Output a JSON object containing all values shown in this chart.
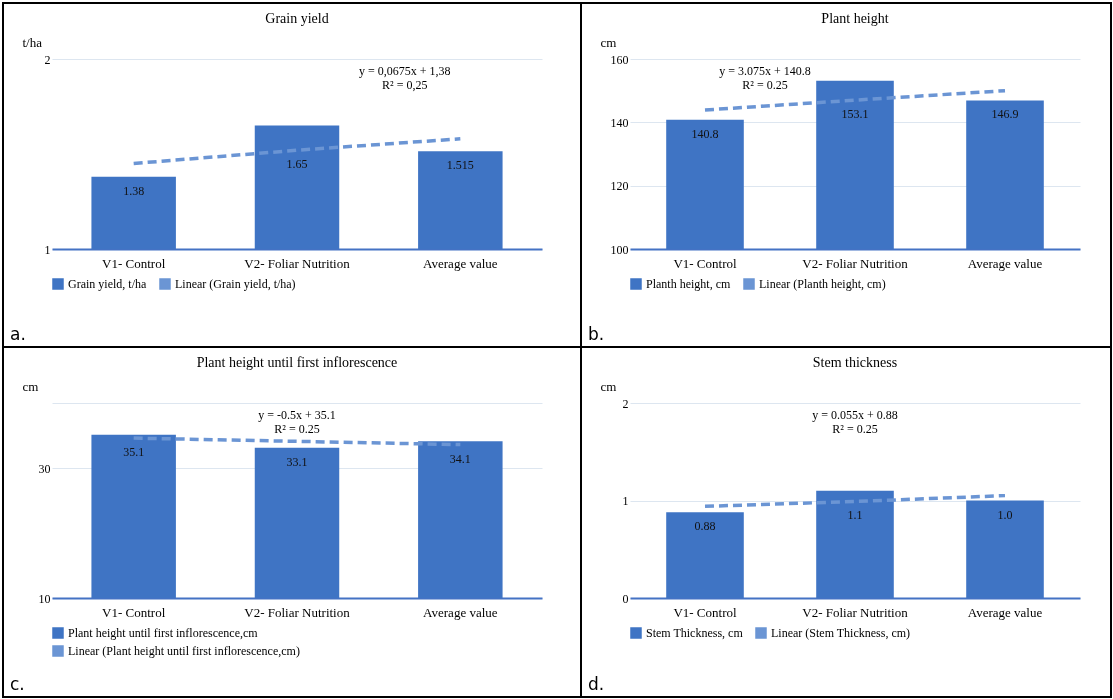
{
  "chart_data": [
    {
      "type": "bar",
      "title": "Grain yield",
      "ylabel": "t/ha",
      "categories": [
        "V1- Control",
        "V2- Foliar Nutrition",
        "Average value"
      ],
      "ylim": [
        1,
        2
      ],
      "yticks": [
        1,
        2
      ],
      "grid": "y",
      "legend": "bottom",
      "annotations": [
        "y = 0,0675x + 1,38",
        "R² = 0,25",
        "a."
      ],
      "series": [
        {
          "name": "Grain yield, t/ha",
          "color": "#3f74c4",
          "values": [
            1.38,
            1.65,
            1.515
          ],
          "value_labels": [
            "1.38",
            "1.65",
            "1.515"
          ]
        },
        {
          "name": "Linear (Grain yield, t/ha)",
          "type": "line",
          "line_style": "dashed",
          "color": "#6b95d4",
          "values": [
            1.45,
            1.52,
            1.58
          ]
        }
      ]
    },
    {
      "type": "bar",
      "title": "Plant height",
      "ylabel": "cm",
      "categories": [
        "V1- Control",
        "V2- Foliar Nutrition",
        "Average value"
      ],
      "ylim": [
        100,
        160
      ],
      "yticks": [
        100,
        120,
        140,
        160
      ],
      "grid": "y",
      "legend": "bottom",
      "annotations": [
        "y = 3.075x + 140.8",
        "R² = 0.25",
        "b."
      ],
      "series": [
        {
          "name": "Planth height, cm",
          "color": "#3f74c4",
          "values": [
            140.8,
            153.1,
            146.9
          ],
          "value_labels": [
            "140.8",
            "153.1",
            "146.9"
          ]
        },
        {
          "name": "Linear (Planth height, cm)",
          "type": "line",
          "line_style": "dashed",
          "color": "#6b95d4",
          "values": [
            143.9,
            147.0,
            150.0
          ]
        }
      ]
    },
    {
      "type": "bar",
      "title": "Plant height until first inflorescence",
      "ylabel": "cm",
      "categories": [
        "V1- Control",
        "V2- Foliar Nutrition",
        "Average value"
      ],
      "ylim": [
        10,
        40
      ],
      "yticks": [
        10,
        30,
        {
          "value": 40,
          "label": null
        }
      ],
      "grid": "y",
      "legend": "bottom left",
      "annotations": [
        "y = -0.5x + 35.1",
        "R² = 0.25",
        "c."
      ],
      "series": [
        {
          "name": "Plant height until first inflorescence,cm",
          "color": "#3f74c4",
          "values": [
            35.1,
            33.1,
            34.1
          ],
          "value_labels": [
            "35.1",
            "33.1",
            "34.1"
          ]
        },
        {
          "name": "Linear (Plant height until first inflorescence,cm)",
          "type": "line",
          "line_style": "dashed",
          "color": "#6b95d4",
          "values": [
            34.6,
            34.1,
            33.6
          ]
        }
      ]
    },
    {
      "type": "bar",
      "title": "Stem thickness",
      "ylabel": "cm",
      "categories": [
        "V1- Control",
        "V2- Foliar Nutrition",
        "Average value"
      ],
      "ylim": [
        0,
        2
      ],
      "yticks": [
        0,
        1,
        2
      ],
      "grid": "y",
      "legend": "bottom",
      "annotations": [
        "y = 0.055x + 0.88",
        "R² = 0.25",
        "d."
      ],
      "series": [
        {
          "name": "Stem Thickness, cm",
          "color": "#3f74c4",
          "values": [
            0.88,
            1.1,
            1.0
          ],
          "value_labels": [
            "0.88",
            "1.1",
            "1.0"
          ]
        },
        {
          "name": "Linear (Stem Thickness, cm)",
          "type": "line",
          "line_style": "dashed",
          "color": "#6b95d4",
          "values": [
            0.94,
            0.99,
            1.05
          ]
        }
      ]
    }
  ]
}
